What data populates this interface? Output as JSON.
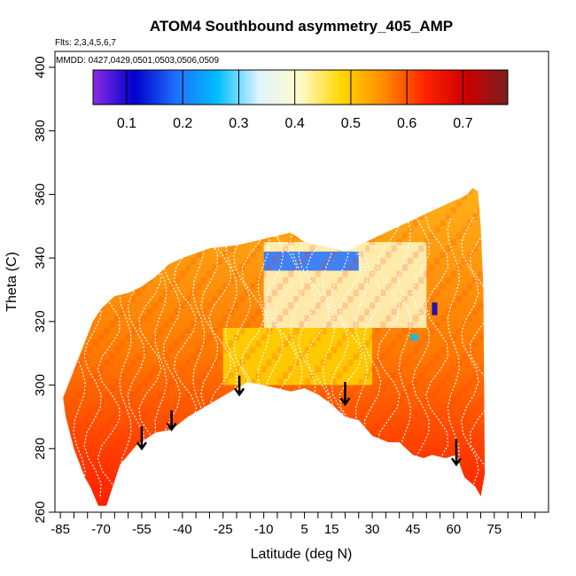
{
  "chart_data": {
    "type": "heatmap",
    "title": "ATOM4 Southbound asymmetry_405_AMP",
    "flights_label": "Flts: 2,3,4,5,6,7",
    "dates_label": "MMDD: 0427,0429,0501,0503,0506,0509",
    "xlabel": "Latitude (deg N)",
    "ylabel": "Theta (C)",
    "xlim": [
      -87,
      95
    ],
    "ylim": [
      260,
      405
    ],
    "x_tick_labels": [
      "-85",
      "-70",
      "-55",
      "-40",
      "-25",
      "-10",
      "5",
      "15",
      "30",
      "45",
      "60",
      "75"
    ],
    "x_tick_values": [
      -85,
      -70,
      -55,
      -40,
      -25,
      -10,
      5,
      15,
      30,
      45,
      60,
      75
    ],
    "x_minor_ticks": [
      -80,
      -75,
      -65,
      -60,
      -50,
      -45,
      -35,
      -30,
      -20,
      -15,
      -5,
      0,
      10,
      20,
      25,
      35,
      40,
      50,
      55,
      65,
      70,
      80,
      85,
      90
    ],
    "y_ticks": [
      260,
      280,
      300,
      320,
      340,
      360,
      380,
      400
    ],
    "y_tick_labels": [
      "260",
      "280",
      "300",
      "320",
      "340",
      "360",
      "380",
      "400"
    ],
    "colorbar": {
      "range": [
        0.04,
        0.78
      ],
      "ticks": [
        0.1,
        0.2,
        0.3,
        0.4,
        0.5,
        0.6,
        0.7
      ],
      "tick_labels": [
        "0.1",
        "0.2",
        "0.3",
        "0.4",
        "0.5",
        "0.6",
        "0.7"
      ],
      "colors": [
        "#8a2be2",
        "#0000cd",
        "#1e6fff",
        "#00bfff",
        "#e0f4ff",
        "#fffac8",
        "#ffd700",
        "#ff8c00",
        "#ff2400",
        "#cc0000",
        "#7a1f1f"
      ]
    },
    "data_envelope": {
      "lat": [
        -84,
        -83,
        -80,
        -76,
        -74,
        -71,
        -68,
        -63,
        -57,
        -50,
        -44,
        -38,
        -30,
        -22,
        -16,
        -10,
        -5,
        0,
        5,
        10,
        15,
        20,
        25,
        30,
        36,
        40,
        45,
        49,
        52,
        57,
        61,
        64,
        68,
        70,
        71.5,
        71,
        70,
        69,
        67,
        65,
        63,
        60,
        55,
        50,
        45,
        40,
        35,
        30,
        25,
        20,
        15,
        10,
        5,
        0,
        -5,
        -10,
        -15,
        -20,
        -30,
        -40,
        -45,
        -50,
        -55,
        -60,
        -65,
        -70,
        -73
      ],
      "theta": [
        296,
        290,
        280,
        271,
        268,
        262,
        262,
        275,
        281,
        285,
        286,
        290,
        294,
        298,
        301,
        300,
        299,
        298,
        299,
        297,
        294,
        290,
        289,
        284,
        282,
        282,
        278,
        277,
        278,
        277,
        278,
        271,
        268,
        265,
        272,
        330,
        350,
        361,
        362,
        360,
        359,
        358,
        356,
        354,
        352,
        350,
        348,
        346,
        344,
        342,
        343,
        344,
        345,
        348,
        347,
        346,
        345,
        344,
        343,
        340,
        338,
        334,
        331,
        329,
        328,
        324,
        320
      ]
    },
    "low_regions": [
      {
        "lat_range": [
          -10,
          25
        ],
        "theta_range": [
          336,
          342
        ],
        "value": 0.22
      },
      {
        "lat_range": [
          -10,
          50
        ],
        "theta_range": [
          318,
          345
        ],
        "value": 0.42
      },
      {
        "lat_range": [
          -25,
          30
        ],
        "theta_range": [
          300,
          318
        ],
        "value": 0.48
      },
      {
        "lat_range": [
          52,
          54
        ],
        "theta_range": [
          322,
          326
        ],
        "value": 0.15
      },
      {
        "lat_range": [
          44,
          47
        ],
        "theta_range": [
          314,
          316
        ],
        "value": 0.28
      }
    ],
    "arrows": [
      {
        "lat": -55,
        "theta_top": 287,
        "theta_tip": 280
      },
      {
        "lat": -44,
        "theta_top": 292,
        "theta_tip": 286
      },
      {
        "lat": -19,
        "theta_top": 303,
        "theta_tip": 297
      },
      {
        "lat": 20,
        "theta_top": 301,
        "theta_tip": 294
      },
      {
        "lat": 61,
        "theta_top": 283,
        "theta_tip": 275
      }
    ]
  }
}
